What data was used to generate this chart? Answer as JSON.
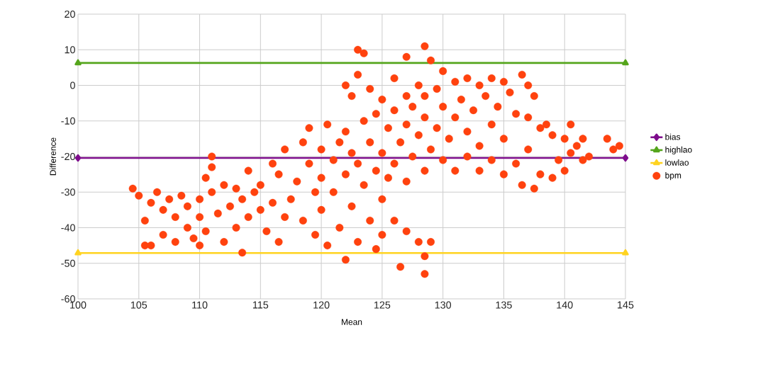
{
  "chart_data": {
    "type": "scatter",
    "xlabel": "Mean",
    "ylabel": "Difference",
    "xlim": [
      100,
      145
    ],
    "ylim": [
      -60,
      20
    ],
    "xticks": [
      100,
      105,
      110,
      115,
      120,
      125,
      130,
      135,
      140,
      145
    ],
    "yticks": [
      -60,
      -50,
      -40,
      -30,
      -20,
      -10,
      0,
      10,
      20
    ],
    "grid": true,
    "legend": "right",
    "series": [
      {
        "name": "bias",
        "type": "line",
        "color": "#7e0d8c",
        "marker": "diamond",
        "x": [
          100,
          145
        ],
        "values": [
          -20.4,
          -20.4
        ]
      },
      {
        "name": "highlao",
        "type": "line",
        "color": "#55a51c",
        "marker": "triangle",
        "x": [
          100,
          145
        ],
        "values": [
          6.3,
          6.3
        ]
      },
      {
        "name": "lowlao",
        "type": "line",
        "color": "#ffd320",
        "marker": "triangle",
        "x": [
          100,
          145
        ],
        "values": [
          -47.1,
          -47.1
        ]
      },
      {
        "name": "bpm",
        "color": "#ff420e",
        "marker": "circle",
        "x": [
          104.5,
          105,
          105.5,
          105.5,
          106,
          106,
          106.5,
          107,
          107,
          107.5,
          108,
          108,
          108.5,
          109,
          109,
          109.5,
          110,
          110,
          110,
          110.5,
          110.5,
          111,
          111,
          111,
          111.5,
          112,
          112,
          112.5,
          113,
          113,
          113.5,
          113.5,
          114,
          114,
          114.5,
          115,
          115,
          115.5,
          116,
          116,
          116.5,
          116.5,
          117,
          117,
          117.5,
          118,
          118.5,
          118.5,
          119,
          119,
          119.5,
          119.5,
          120,
          120,
          120,
          120.5,
          120.5,
          121,
          121,
          121.5,
          121.5,
          122,
          122,
          122,
          122,
          122.5,
          122.5,
          122.5,
          123,
          123,
          123,
          123,
          123.5,
          123.5,
          123.5,
          124,
          124,
          124,
          124.5,
          124.5,
          124.5,
          125,
          125,
          125,
          125,
          125.5,
          125.5,
          126,
          126,
          126,
          126,
          126.5,
          126.5,
          127,
          127,
          127,
          127,
          127,
          127.5,
          127.5,
          128,
          128,
          128,
          128.5,
          128.5,
          128.5,
          128.5,
          128.5,
          128.5,
          129,
          129,
          129,
          129.5,
          129.5,
          130,
          130,
          130,
          130.5,
          131,
          131,
          131,
          131.5,
          132,
          132,
          132,
          132.5,
          133,
          133,
          133,
          133.5,
          134,
          134,
          134,
          134.5,
          135,
          135,
          135,
          135.5,
          136,
          136,
          136.5,
          136.5,
          137,
          137,
          137,
          137.5,
          137.5,
          138,
          138,
          138.5,
          139,
          139,
          139.5,
          140,
          140,
          140.5,
          140.5,
          141,
          141.5,
          141.5,
          142,
          143.5,
          144,
          144.5
        ],
        "values": [
          -29,
          -31,
          -38,
          -45,
          -45,
          -33,
          -30,
          -35,
          -42,
          -32,
          -37,
          -44,
          -31,
          -34,
          -40,
          -43,
          -32,
          -37,
          -45,
          -26,
          -41,
          -23,
          -20,
          -30,
          -36,
          -28,
          -44,
          -34,
          -29,
          -40,
          -47,
          -32,
          -24,
          -37,
          -30,
          -35,
          -28,
          -41,
          -22,
          -33,
          -25,
          -44,
          -37,
          -18,
          -32,
          -27,
          -16,
          -38,
          -12,
          -22,
          -30,
          -42,
          -18,
          -26,
          -35,
          -45,
          -11,
          -21,
          -30,
          -16,
          -40,
          -49,
          -25,
          -13,
          0,
          -19,
          -34,
          -3,
          10,
          3,
          -22,
          -44,
          9,
          -10,
          -28,
          -1,
          -16,
          -38,
          -8,
          -24,
          -46,
          -4,
          -19,
          -32,
          -42,
          -12,
          -26,
          2,
          -7,
          -22,
          -38,
          -16,
          -51,
          8,
          -3,
          -11,
          -27,
          -41,
          -6,
          -20,
          0,
          -14,
          -44,
          11,
          -3,
          -9,
          -24,
          -53,
          -48,
          7,
          -18,
          -44,
          -1,
          -12,
          4,
          -6,
          -21,
          -15,
          1,
          -9,
          -24,
          -4,
          2,
          -13,
          -20,
          -7,
          0,
          -17,
          -24,
          -3,
          2,
          -11,
          -21,
          -6,
          1,
          -15,
          -25,
          -2,
          -8,
          -22,
          3,
          -28,
          0,
          -9,
          -18,
          -3,
          -29,
          -12,
          -25,
          -11,
          -14,
          -26,
          -21,
          -15,
          -24,
          -11,
          -19,
          -17,
          -15,
          -21,
          -20,
          -15,
          -18,
          -17
        ]
      }
    ]
  }
}
